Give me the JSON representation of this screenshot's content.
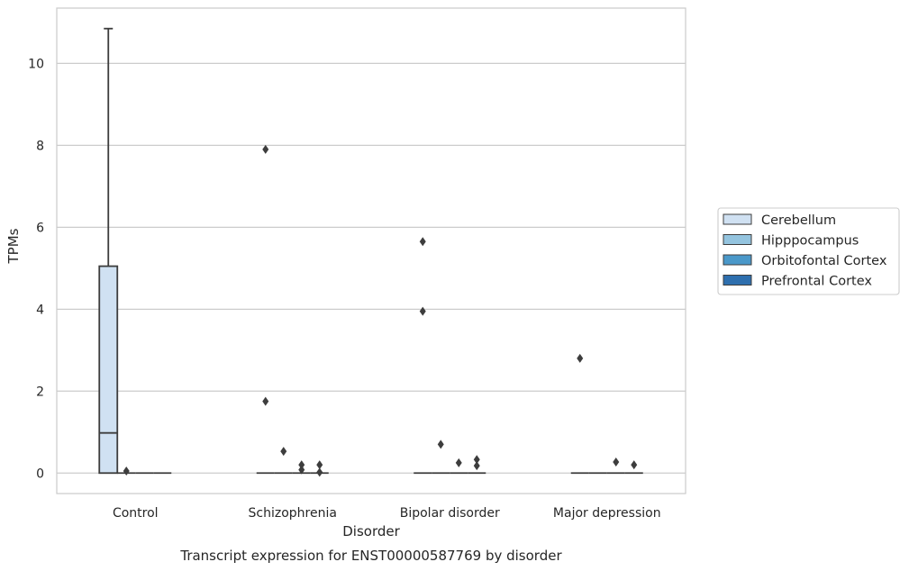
{
  "chart_data": {
    "type": "box",
    "title": "",
    "caption": "Transcript expression for ENST00000587769 by disorder",
    "xlabel": "Disorder",
    "ylabel": "TPMs",
    "ylim": [
      -0.5,
      11.35
    ],
    "yticks": [
      0,
      2,
      4,
      6,
      8,
      10
    ],
    "grid": "horizontal",
    "legend_position": "right-outside",
    "categories": [
      "Control",
      "Schizophrenia",
      "Bipolar disorder",
      "Major depression"
    ],
    "series": [
      {
        "name": "Cerebellum",
        "color": "#d0e1f2",
        "boxes": [
          {
            "q1": 0,
            "median": 0.98,
            "q3": 5.05,
            "whisker_low": 0,
            "whisker_high": 10.85,
            "outliers": []
          },
          {
            "q1": 0,
            "median": 0,
            "q3": 0,
            "whisker_low": 0,
            "whisker_high": 0,
            "outliers": [
              7.9,
              1.75
            ]
          },
          {
            "q1": 0,
            "median": 0,
            "q3": 0,
            "whisker_low": 0,
            "whisker_high": 0,
            "outliers": [
              5.65,
              3.95
            ]
          },
          {
            "q1": 0,
            "median": 0,
            "q3": 0,
            "whisker_low": 0,
            "whisker_high": 0,
            "outliers": [
              2.8
            ]
          }
        ]
      },
      {
        "name": "Hipppocampus",
        "color": "#94c4df",
        "boxes": [
          {
            "q1": 0,
            "median": 0,
            "q3": 0,
            "whisker_low": 0,
            "whisker_high": 0,
            "outliers": [
              0.05
            ]
          },
          {
            "q1": 0,
            "median": 0,
            "q3": 0,
            "whisker_low": 0,
            "whisker_high": 0,
            "outliers": [
              0.53
            ]
          },
          {
            "q1": 0,
            "median": 0,
            "q3": 0,
            "whisker_low": 0,
            "whisker_high": 0,
            "outliers": [
              0.7
            ]
          },
          {
            "q1": 0,
            "median": 0,
            "q3": 0,
            "whisker_low": 0,
            "whisker_high": 0,
            "outliers": []
          }
        ]
      },
      {
        "name": "Orbitofontal Cortex",
        "color": "#4a98c9",
        "boxes": [
          {
            "q1": 0,
            "median": 0,
            "q3": 0,
            "whisker_low": 0,
            "whisker_high": 0,
            "outliers": []
          },
          {
            "q1": 0,
            "median": 0,
            "q3": 0,
            "whisker_low": 0,
            "whisker_high": 0,
            "outliers": [
              0.2,
              0.08
            ]
          },
          {
            "q1": 0,
            "median": 0,
            "q3": 0,
            "whisker_low": 0,
            "whisker_high": 0,
            "outliers": [
              0.25
            ]
          },
          {
            "q1": 0,
            "median": 0,
            "q3": 0,
            "whisker_low": 0,
            "whisker_high": 0,
            "outliers": [
              0.27
            ]
          }
        ]
      },
      {
        "name": "Prefrontal Cortex",
        "color": "#2e6fae",
        "boxes": [
          {
            "q1": 0,
            "median": 0,
            "q3": 0,
            "whisker_low": 0,
            "whisker_high": 0,
            "outliers": []
          },
          {
            "q1": 0,
            "median": 0,
            "q3": 0,
            "whisker_low": 0,
            "whisker_high": 0,
            "outliers": [
              0.2,
              0.02
            ]
          },
          {
            "q1": 0,
            "median": 0,
            "q3": 0,
            "whisker_low": 0,
            "whisker_high": 0,
            "outliers": [
              0.33,
              0.18
            ]
          },
          {
            "q1": 0,
            "median": 0,
            "q3": 0,
            "whisker_low": 0,
            "whisker_high": 0,
            "outliers": [
              0.2
            ]
          }
        ]
      }
    ]
  }
}
